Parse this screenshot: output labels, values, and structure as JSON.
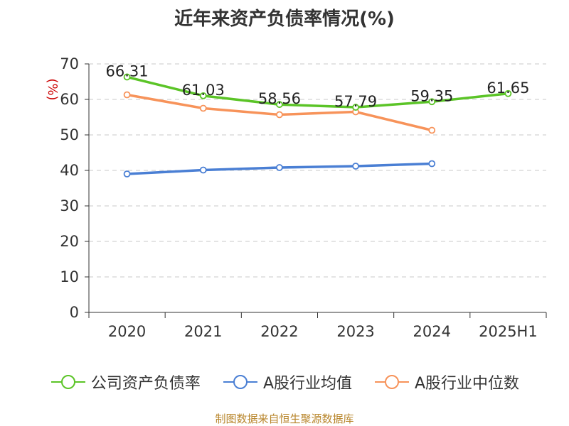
{
  "chart_data": {
    "type": "line",
    "title": "近年来资产负债率情况(%)",
    "ylabel": "(%)",
    "xlabel": "",
    "categories": [
      "2020",
      "2021",
      "2022",
      "2023",
      "2024",
      "2025H1"
    ],
    "ylim": [
      0,
      70
    ],
    "yticks": [
      0,
      10,
      20,
      30,
      40,
      50,
      60,
      70
    ],
    "grid": true,
    "legend_position": "bottom",
    "series": [
      {
        "name": "公司资产负债率",
        "color": "#5bc427",
        "values": [
          66.31,
          61.03,
          58.56,
          57.79,
          59.35,
          61.65
        ],
        "labels": [
          "66.31",
          "61.03",
          "58.56",
          "57.79",
          "59.35",
          "61.65"
        ]
      },
      {
        "name": "A股行业均值",
        "color": "#4a7fd4",
        "values": [
          39.0,
          40.1,
          40.8,
          41.2,
          41.9,
          null
        ]
      },
      {
        "name": "A股行业中位数",
        "color": "#f7935a",
        "values": [
          61.3,
          57.5,
          55.7,
          56.5,
          51.3,
          null
        ]
      }
    ]
  },
  "source": "制图数据来自恒生聚源数据库"
}
